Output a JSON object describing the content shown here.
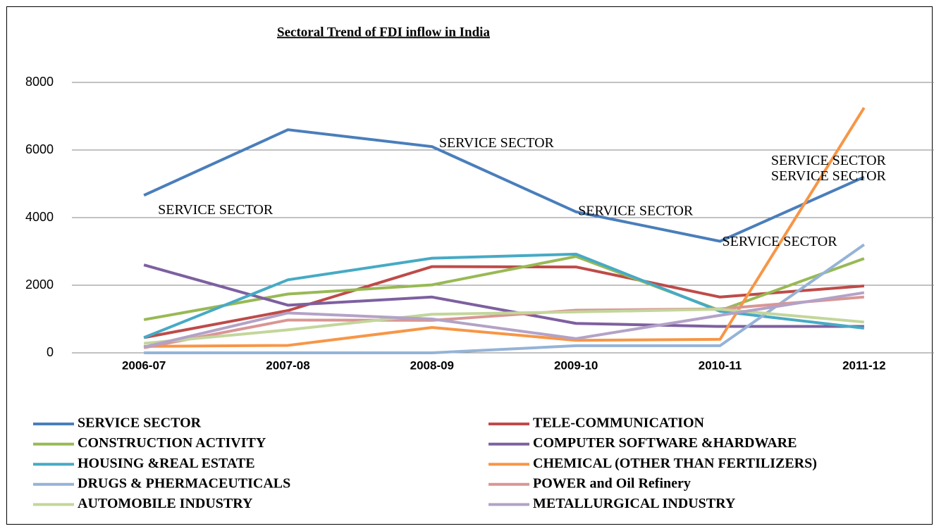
{
  "chart_data": {
    "type": "line",
    "title": "Sectoral Trend of FDI inflow in India",
    "categories": [
      "2006-07",
      "2007-08",
      "2008-09",
      "2009-10",
      "2010-11",
      "2011-12"
    ],
    "ylim": [
      0,
      8000
    ],
    "yticks": [
      0,
      2000,
      4000,
      6000,
      8000
    ],
    "grid": true,
    "series": [
      {
        "name": "SERVICE SECTOR",
        "color": "#4a7ebb",
        "values": [
          4660,
          6600,
          6100,
          4170,
          3300,
          5200
        ]
      },
      {
        "name": "TELE-COMMUNICATION",
        "color": "#be4b48",
        "values": [
          450,
          1250,
          2550,
          2540,
          1650,
          1980
        ]
      },
      {
        "name": "CONSTRUCTION ACTIVITY",
        "color": "#98b954",
        "values": [
          980,
          1740,
          2010,
          2850,
          1250,
          2790
        ]
      },
      {
        "name": "COMPUTER SOFTWARE &HARDWARE",
        "color": "#7d60a0",
        "values": [
          2600,
          1410,
          1650,
          870,
          780,
          780
        ]
      },
      {
        "name": "HOUSING &REAL ESTATE",
        "color": "#46aac5",
        "values": [
          450,
          2160,
          2800,
          2920,
          1230,
          730
        ]
      },
      {
        "name": "CHEMICAL (OTHER THAN FERTILIZERS)",
        "color": "#f79646",
        "values": [
          190,
          220,
          750,
          370,
          400,
          7250
        ]
      },
      {
        "name": "DRUGS & PHERMACEUTICALS",
        "color": "#95b3d7",
        "values": [
          0,
          0,
          0,
          210,
          210,
          3200
        ]
      },
      {
        "name": "POWER and Oil Refinery",
        "color": "#d99694",
        "values": [
          150,
          970,
          960,
          1260,
          1300,
          1650
        ]
      },
      {
        "name": "AUTOMOBILE INDUSTRY",
        "color": "#c3d69b",
        "values": [
          280,
          680,
          1140,
          1210,
          1290,
          910
        ]
      },
      {
        "name": "METALLURGICAL INDUSTRY",
        "color": "#b3a2c7",
        "values": [
          170,
          1180,
          1000,
          420,
          1110,
          1780
        ]
      }
    ]
  }
}
